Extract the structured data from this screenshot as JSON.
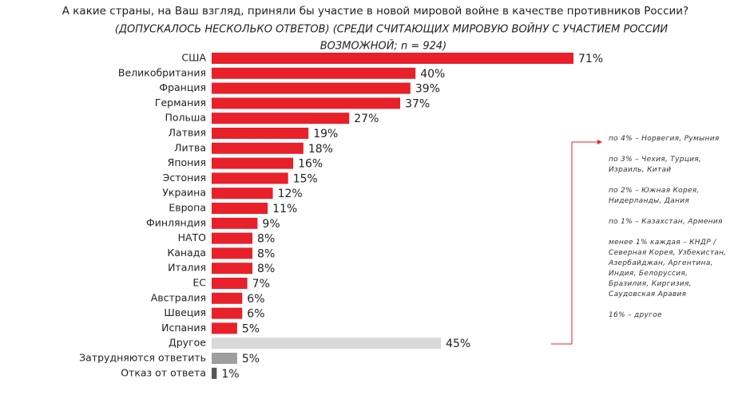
{
  "chart_data": {
    "type": "barh",
    "title": "А какие страны, на Ваш взгляд, приняли бы участие в новой мировой войне в качестве противников России?",
    "subtitle": [
      "(ДОПУСКАЛОСЬ НЕСКОЛЬКО ОТВЕТОВ) (СРЕДИ СЧИТАЮЩИХ МИРОВУЮ ВОЙНУ С УЧАСТИЕМ РОССИИ",
      "ВОЗМОЖНОЙ; n = 924)"
    ],
    "categories": [
      "США",
      "Великобритания",
      "Франция",
      "Германия",
      "Польша",
      "Латвия",
      "Литва",
      "Япония",
      "Эстония",
      "Украина",
      "Европа",
      "Финляндия",
      "НАТО",
      "Канада",
      "Италия",
      "ЕС",
      "Австралия",
      "Швеция",
      "Испания",
      "Другое",
      "Затрудняются ответить",
      "Отказ от ответа"
    ],
    "values": [
      71,
      40,
      39,
      37,
      27,
      19,
      18,
      16,
      15,
      12,
      11,
      9,
      8,
      8,
      8,
      7,
      6,
      6,
      5,
      45,
      5,
      1
    ],
    "value_labels": [
      "71%",
      "40%",
      "39%",
      "37%",
      "27%",
      "19%",
      "18%",
      "16%",
      "15%",
      "12%",
      "11%",
      "9%",
      "8%",
      "8%",
      "8%",
      "7%",
      "6%",
      "6%",
      "5%",
      "45%",
      "5%",
      "1%"
    ],
    "colors": [
      "#e8202a",
      "#e8202a",
      "#e8202a",
      "#e8202a",
      "#e8202a",
      "#e8202a",
      "#e8202a",
      "#e8202a",
      "#e8202a",
      "#e8202a",
      "#e8202a",
      "#e8202a",
      "#e8202a",
      "#e8202a",
      "#e8202a",
      "#e8202a",
      "#e8202a",
      "#e8202a",
      "#e8202a",
      "#d9d9d9",
      "#9e9e9e",
      "#555555"
    ],
    "annotations": [
      "по 4% – Норвегия, Румыния",
      "по 3% – Чехия, Турция, Израиль, Китай",
      "по 2% – Южная Корея, Нидерланды, Дания",
      "по 1% – Казахстан, Армения",
      "менее 1% каждая – КНДР / Северная Корея, Узбекистан, Азербайджан, Аргентина, Индия, Белоруссия, Бразилия, Киргизия, Саудовская Аравия",
      "16% – другое"
    ]
  }
}
